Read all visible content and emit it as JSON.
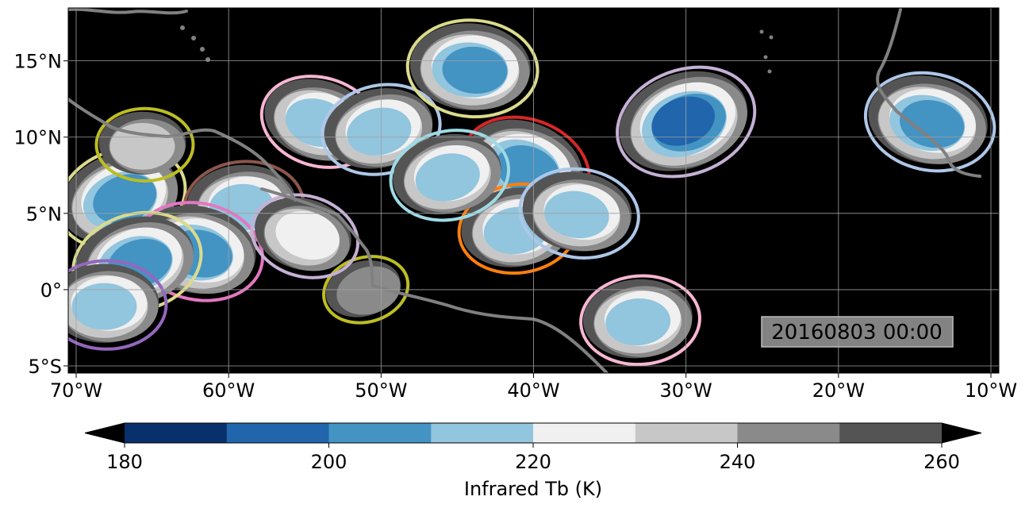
{
  "map": {
    "title": "",
    "timestamp": "20160803 00:00",
    "lon_range": [
      -70,
      -10
    ],
    "lat_range": [
      -5,
      18
    ],
    "x_ticks": [
      {
        "value": -70,
        "label": "70°W"
      },
      {
        "value": -60,
        "label": "60°W"
      },
      {
        "value": -50,
        "label": "50°W"
      },
      {
        "value": -40,
        "label": "40°W"
      },
      {
        "value": -30,
        "label": "30°W"
      },
      {
        "value": -20,
        "label": "20°W"
      },
      {
        "value": -10,
        "label": "10°W"
      }
    ],
    "y_ticks": [
      {
        "value": 15,
        "label": "15°N"
      },
      {
        "value": 10,
        "label": "10°N"
      },
      {
        "value": 5,
        "label": "5°N"
      },
      {
        "value": 0,
        "label": "0°"
      },
      {
        "value": -5,
        "label": "5°S"
      }
    ],
    "grid": true,
    "background_color": "#000000",
    "coastline_color": "#808080"
  },
  "colorbar": {
    "label": "Infrared Tb (K)",
    "extend": "both",
    "boundaries": [
      180,
      190,
      200,
      210,
      220,
      230,
      240,
      250,
      260
    ],
    "colors": [
      "#08306b",
      "#2166ac",
      "#4393c3",
      "#92c5de",
      "#f0f0f0",
      "#c7c7c7",
      "#8a8a8a",
      "#545454"
    ],
    "under_color": "#000000",
    "over_color": "#000000",
    "ticks": [
      {
        "value": 180,
        "label": "180"
      },
      {
        "value": 200,
        "label": "200"
      },
      {
        "value": 220,
        "label": "220"
      },
      {
        "value": 240,
        "label": "240"
      },
      {
        "value": 260,
        "label": "260"
      }
    ]
  },
  "chart_data": {
    "type": "heatmap",
    "description_variable": "Infrared brightness temperature",
    "cloud_systems": [
      {
        "lon": -67,
        "lat": 6,
        "tb_min": 205,
        "outline": "#dbdb8d"
      },
      {
        "lon": -59,
        "lat": 5.5,
        "tb_min": 210,
        "outline": "#8c564b"
      },
      {
        "lon": -62,
        "lat": 2.5,
        "tb_min": 205,
        "outline": "#e377c2"
      },
      {
        "lon": -66,
        "lat": 1.8,
        "tb_min": 205,
        "outline": "#dbdb8d"
      },
      {
        "lon": -68,
        "lat": -1,
        "tb_min": 215,
        "outline": "#9467bd"
      },
      {
        "lon": -54,
        "lat": 11,
        "tb_min": 210,
        "outline": "#f7b6d2"
      },
      {
        "lon": -50,
        "lat": 10.5,
        "tb_min": 210,
        "outline": "#aec7e8"
      },
      {
        "lon": -44,
        "lat": 14.5,
        "tb_min": 205,
        "outline": "#dbdb8d"
      },
      {
        "lon": -40.5,
        "lat": 8,
        "tb_min": 205,
        "outline": "#d62728"
      },
      {
        "lon": -41,
        "lat": 4,
        "tb_min": 210,
        "outline": "#ff7f0e"
      },
      {
        "lon": -37,
        "lat": 5,
        "tb_min": 212,
        "outline": "#aec7e8"
      },
      {
        "lon": -30,
        "lat": 11,
        "tb_min": 195,
        "outline": "#c5b0d5"
      },
      {
        "lon": -33,
        "lat": -2,
        "tb_min": 210,
        "outline": "#f7b6d2"
      },
      {
        "lon": -14,
        "lat": 11,
        "tb_min": 205,
        "outline": "#aec7e8"
      },
      {
        "lon": -51,
        "lat": 0,
        "tb_min": 240,
        "outline": "#bcbd22"
      },
      {
        "lon": -65.5,
        "lat": 9.5,
        "tb_min": 235,
        "outline": "#bcbd22"
      },
      {
        "lon": -55,
        "lat": 3.5,
        "tb_min": 220,
        "outline": "#c5b0d5"
      },
      {
        "lon": -45.5,
        "lat": 7.5,
        "tb_min": 210,
        "outline": "#9edae5"
      }
    ]
  }
}
